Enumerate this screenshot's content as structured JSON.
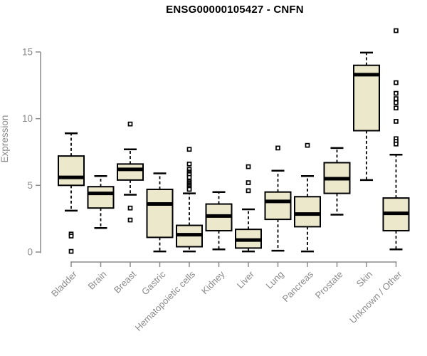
{
  "chart_data": {
    "type": "boxplot",
    "title": "ENSG00000105427 - CNFN",
    "ylabel": "Expression",
    "xlabel": "",
    "ylim": [
      0,
      15
    ],
    "yticks": [
      0,
      5,
      10,
      15
    ],
    "grid": false,
    "legend": "none",
    "categories": [
      "Bladder",
      "Brain",
      "Breast",
      "Gastric",
      "Hematopoietic cells",
      "Kidney",
      "Liver",
      "Lung",
      "Pancreas",
      "Prostate",
      "Skin",
      "Unknown / Other"
    ],
    "series": [
      {
        "category": "Bladder",
        "whisker_low": 3.1,
        "q1": 5.0,
        "median": 5.6,
        "q3": 7.2,
        "whisker_high": 8.9,
        "outliers": [
          1.35,
          1.2,
          0.05
        ]
      },
      {
        "category": "Brain",
        "whisker_low": 1.8,
        "q1": 3.3,
        "median": 4.4,
        "q3": 4.9,
        "whisker_high": 5.7,
        "outliers": []
      },
      {
        "category": "Breast",
        "whisker_low": 4.3,
        "q1": 5.4,
        "median": 6.2,
        "q3": 6.6,
        "whisker_high": 7.7,
        "outliers": [
          9.6,
          3.3,
          2.4
        ]
      },
      {
        "category": "Gastric",
        "whisker_low": 0.05,
        "q1": 1.1,
        "median": 3.6,
        "q3": 4.7,
        "whisker_high": 5.9,
        "outliers": []
      },
      {
        "category": "Hematopoietic cells",
        "whisker_low": 0.05,
        "q1": 0.4,
        "median": 1.3,
        "q3": 2.0,
        "whisker_high": 4.4,
        "outliers": [
          7.7,
          6.6,
          6.2,
          6.0,
          5.9,
          5.8,
          5.6,
          5.3,
          5.2,
          5.1,
          5.0,
          4.9,
          4.8,
          4.7
        ]
      },
      {
        "category": "Kidney",
        "whisker_low": 0.2,
        "q1": 1.6,
        "median": 2.7,
        "q3": 3.6,
        "whisker_high": 4.5,
        "outliers": []
      },
      {
        "category": "Liver",
        "whisker_low": 0.05,
        "q1": 0.3,
        "median": 0.9,
        "q3": 1.7,
        "whisker_high": 3.2,
        "outliers": [
          6.4,
          5.2,
          4.6
        ]
      },
      {
        "category": "Lung",
        "whisker_low": 0.1,
        "q1": 2.45,
        "median": 3.8,
        "q3": 4.5,
        "whisker_high": 6.1,
        "outliers": [
          7.8
        ]
      },
      {
        "category": "Pancreas",
        "whisker_low": 0.05,
        "q1": 1.9,
        "median": 2.85,
        "q3": 4.15,
        "whisker_high": 5.7,
        "outliers": [
          8.0
        ]
      },
      {
        "category": "Prostate",
        "whisker_low": 2.8,
        "q1": 4.4,
        "median": 5.5,
        "q3": 6.7,
        "whisker_high": 7.8,
        "outliers": []
      },
      {
        "category": "Skin",
        "whisker_low": 5.4,
        "q1": 9.1,
        "median": 13.3,
        "q3": 14.0,
        "whisker_high": 14.95,
        "outliers": []
      },
      {
        "category": "Unknown / Other",
        "whisker_low": 0.2,
        "q1": 1.6,
        "median": 2.9,
        "q3": 4.05,
        "whisker_high": 7.3,
        "outliers": [
          16.6,
          12.7,
          11.9,
          11.5,
          11.2,
          10.8,
          9.8,
          8.5,
          8.3,
          8.1
        ]
      }
    ],
    "colors": {
      "box_fill": "#ECE8CC",
      "box_border": "#000000",
      "median": "#000000",
      "outlier_fill": "#ffffff",
      "outlier_border": "#000000",
      "axis": "#8a8a8a",
      "tick_label": "#8a8a8a",
      "title": "#000000",
      "background": "#ffffff"
    }
  }
}
